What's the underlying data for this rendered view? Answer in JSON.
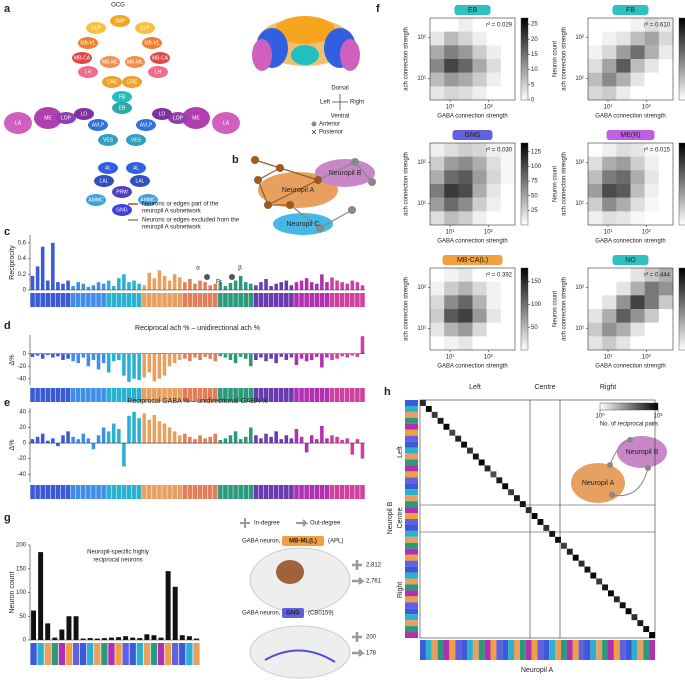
{
  "panel_labels": [
    "a",
    "b",
    "c",
    "d",
    "e",
    "f",
    "g",
    "h"
  ],
  "panel_a": {
    "top_label": "OCG",
    "regions": [
      {
        "name": "SMP",
        "color": "#f7a51e"
      },
      {
        "name": "SLP",
        "color": "#f6c040"
      },
      {
        "name": "SLP",
        "color": "#f6c040"
      },
      {
        "name": "MB-VL",
        "color": "#f08030"
      },
      {
        "name": "MB-VL",
        "color": "#f08030"
      },
      {
        "name": "MB-CA",
        "color": "#e04848"
      },
      {
        "name": "MB-CA",
        "color": "#e04848"
      },
      {
        "name": "LH",
        "color": "#f06c8c"
      },
      {
        "name": "LH",
        "color": "#f06c8c"
      },
      {
        "name": "MB-ML",
        "color": "#f09050"
      },
      {
        "name": "MB-ML",
        "color": "#f09050"
      },
      {
        "name": "CRE",
        "color": "#f0a030"
      },
      {
        "name": "CRE",
        "color": "#f0a030"
      },
      {
        "name": "FB",
        "color": "#20c0c0"
      },
      {
        "name": "EB",
        "color": "#30a8a8"
      },
      {
        "name": "LA",
        "color": "#d060c0"
      },
      {
        "name": "ME",
        "color": "#b040b0"
      },
      {
        "name": "LOP",
        "color": "#9040b0"
      },
      {
        "name": "LO",
        "color": "#8030a0"
      },
      {
        "name": "LA",
        "color": "#d060c0"
      },
      {
        "name": "ME",
        "color": "#b040b0"
      },
      {
        "name": "LOP",
        "color": "#9040b0"
      },
      {
        "name": "LO",
        "color": "#8030a0"
      },
      {
        "name": "AVLP",
        "color": "#3070e0"
      },
      {
        "name": "AVLP",
        "color": "#3070e0"
      },
      {
        "name": "VES",
        "color": "#30a0c0"
      },
      {
        "name": "VES",
        "color": "#30a0c0"
      },
      {
        "name": "AL",
        "color": "#3060e0"
      },
      {
        "name": "AL",
        "color": "#3060e0"
      },
      {
        "name": "LAL",
        "color": "#3050c0"
      },
      {
        "name": "LAL",
        "color": "#3050c0"
      },
      {
        "name": "PRW",
        "color": "#5040c0"
      },
      {
        "name": "GNG",
        "color": "#4040e0"
      },
      {
        "name": "AMMC",
        "color": "#40a0e0"
      },
      {
        "name": "AMMC",
        "color": "#40a0e0"
      }
    ],
    "compass": [
      "Dorsal",
      "Ventral",
      "Left",
      "Right",
      "Anterior",
      "Posterior"
    ]
  },
  "panel_b": {
    "nodes": [
      "Neuropil A",
      "Neuropil B",
      "Neuropil C"
    ],
    "legend": [
      [
        "Neurons or edges part of the",
        "neuropil A subnetwork"
      ],
      [
        "Neurons or edges excluded from the",
        "neuropil A subnetwork"
      ]
    ]
  },
  "chart_data": [
    {
      "type": "bar",
      "y_label": "Reciprocity",
      "inset_labels": [
        "α",
        "Pr",
        "β"
      ],
      "colors": [
        "#3b5ad8",
        "#3f8ee8",
        "#2ab0d0",
        "#e8a060",
        "#e07f5a",
        "#2a9a7a",
        "#6a3ab0",
        "#b030b0",
        "#d040a0"
      ],
      "values": [
        0.18,
        0.3,
        0.55,
        0.12,
        0.6,
        0.1,
        0.08,
        0.12,
        0.05,
        0.1,
        0.08,
        0.04,
        0.06,
        0.1,
        0.08,
        0.12,
        0.05,
        0.15,
        0.2,
        0.1,
        0.12,
        0.08,
        0.06,
        0.22,
        0.15,
        0.25,
        0.18,
        0.12,
        0.2,
        0.16,
        0.1,
        0.14,
        0.08,
        0.12,
        0.1,
        0.06,
        0.08,
        0.1,
        0.05,
        0.09,
        0.12,
        0.18,
        0.1,
        0.08,
        0.06,
        0.1,
        0.14,
        0.05,
        0.08,
        0.1,
        0.12,
        0.06,
        0.1,
        0.12,
        0.15,
        0.1,
        0.08,
        0.2,
        0.1,
        0.16,
        0.12,
        0.1,
        0.08,
        0.12,
        0.1,
        0.06
      ],
      "ylim": [
        0,
        0.7
      ],
      "yticks": [
        0,
        0.2,
        0.4,
        0.6
      ]
    },
    {
      "type": "bar",
      "title": "Reciprocal ach % – unidirectional ach %",
      "y_label": "Δ%",
      "colors": [
        "#3b5ad8",
        "#3f8ee8",
        "#2ab0d0",
        "#e8a060",
        "#e07f5a",
        "#2a9a7a",
        "#6a3ab0",
        "#b030b0",
        "#d040a0"
      ],
      "values": [
        -5,
        -3,
        -8,
        -2,
        -6,
        -4,
        -10,
        -8,
        -12,
        -15,
        -6,
        -20,
        -10,
        -25,
        -15,
        -30,
        -12,
        -10,
        -35,
        -45,
        -40,
        -42,
        -38,
        -30,
        -44,
        -40,
        -35,
        -20,
        -15,
        -10,
        -8,
        -12,
        -6,
        -10,
        -5,
        -8,
        -12,
        -4,
        -6,
        -10,
        -15,
        -5,
        -8,
        -20,
        -10,
        -6,
        -12,
        -8,
        -15,
        -5,
        -10,
        -6,
        -18,
        -8,
        -12,
        -10,
        -5,
        -22,
        -6,
        -10,
        -8,
        -4,
        -6,
        -3,
        -5,
        28
      ],
      "ylim": [
        -50,
        30
      ],
      "yticks": [
        0,
        -20,
        -40
      ]
    },
    {
      "type": "bar",
      "title": "Reciprocal GABA % – unidirectional GABA %",
      "y_label": "Δ%",
      "colors": [
        "#3b5ad8",
        "#3f8ee8",
        "#2ab0d0",
        "#e8a060",
        "#e07f5a",
        "#2a9a7a",
        "#6a3ab0",
        "#b030b0",
        "#d040a0"
      ],
      "values": [
        5,
        8,
        12,
        3,
        6,
        -4,
        10,
        15,
        8,
        5,
        12,
        6,
        -8,
        10,
        20,
        15,
        25,
        18,
        -30,
        35,
        40,
        32,
        38,
        30,
        36,
        28,
        25,
        20,
        15,
        10,
        12,
        8,
        5,
        10,
        6,
        8,
        12,
        4,
        6,
        10,
        15,
        5,
        8,
        20,
        10,
        6,
        12,
        8,
        15,
        5,
        10,
        6,
        18,
        8,
        -12,
        10,
        5,
        22,
        6,
        10,
        8,
        4,
        6,
        -15,
        5,
        -20
      ],
      "ylim": [
        -50,
        45
      ],
      "yticks": [
        40,
        20,
        0,
        -20,
        -40
      ]
    },
    {
      "type": "bar",
      "y_label": "Neuron count",
      "color": "#111111",
      "values": [
        62,
        185,
        35,
        5,
        22,
        50,
        50,
        3,
        4,
        3,
        4,
        5,
        6,
        8,
        5,
        4,
        12,
        10,
        5,
        145,
        112,
        10,
        8,
        3
      ],
      "ylim": [
        0,
        200
      ],
      "yticks": [
        0,
        50,
        100,
        150,
        200
      ]
    }
  ],
  "panel_f": {
    "x_label": "GABA connection strength",
    "y_label": "ach connection strength",
    "colorbar_label": "Neuron count",
    "xlim": [
      3,
      500
    ],
    "ylim": [
      3,
      300
    ],
    "xticks": [
      {
        "value": 10,
        "label": "10¹"
      },
      {
        "value": 100,
        "label": "10²"
      }
    ],
    "yticks": [
      {
        "value": 10,
        "label": "10¹"
      },
      {
        "value": 100,
        "label": "10²"
      }
    ],
    "panels": [
      {
        "name": "EB",
        "color": "#30c0c0",
        "r2_label": "r² = 0.029",
        "colorbar_lim": [
          0,
          27
        ],
        "colorbar_ticks": [
          0,
          5,
          10,
          15,
          20,
          25
        ],
        "cells": [
          [
            0,
            0,
            2,
            0,
            0,
            0
          ],
          [
            3,
            8,
            5,
            2,
            0,
            0
          ],
          [
            10,
            15,
            12,
            6,
            2,
            0
          ],
          [
            14,
            22,
            18,
            10,
            4,
            0
          ],
          [
            8,
            12,
            10,
            6,
            2,
            0
          ],
          [
            3,
            5,
            4,
            2,
            0,
            0
          ]
        ]
      },
      {
        "name": "FB",
        "color": "#30c0c0",
        "r2_label": "r² = 0.610",
        "colorbar_lim": [
          0,
          35
        ],
        "colorbar_ticks": [
          0,
          10,
          20,
          30
        ],
        "cells": [
          [
            0,
            0,
            0,
            2,
            5,
            3
          ],
          [
            0,
            2,
            4,
            10,
            14,
            6
          ],
          [
            2,
            6,
            15,
            22,
            12,
            3
          ],
          [
            5,
            14,
            25,
            10,
            4,
            0
          ],
          [
            10,
            18,
            12,
            4,
            0,
            0
          ],
          [
            6,
            8,
            3,
            0,
            0,
            0
          ]
        ]
      },
      {
        "name": "GNG",
        "color": "#6060e0",
        "r2_label": "r² = 0.030",
        "colorbar_lim": [
          0,
          140
        ],
        "colorbar_ticks": [
          25,
          50,
          75,
          100,
          125
        ],
        "cells": [
          [
            10,
            20,
            30,
            25,
            10,
            5
          ],
          [
            30,
            60,
            70,
            50,
            20,
            5
          ],
          [
            50,
            90,
            100,
            60,
            25,
            5
          ],
          [
            80,
            120,
            110,
            50,
            15,
            0
          ],
          [
            60,
            90,
            70,
            30,
            10,
            0
          ],
          [
            20,
            40,
            30,
            10,
            0,
            0
          ]
        ]
      },
      {
        "name": "ME(R)",
        "color": "#c060e0",
        "r2_label": "r² = 0.015",
        "colorbar_lim": [
          0,
          1400
        ],
        "colorbar_ticks": [
          250,
          500,
          750,
          {
            "value": 1000,
            "label": "1,000"
          },
          {
            "value": 1250,
            "label": "1,250"
          }
        ],
        "cells": [
          [
            0,
            100,
            200,
            150,
            50,
            0
          ],
          [
            200,
            500,
            600,
            300,
            100,
            0
          ],
          [
            400,
            800,
            900,
            500,
            150,
            0
          ],
          [
            600,
            1100,
            1000,
            400,
            100,
            0
          ],
          [
            300,
            700,
            500,
            200,
            50,
            0
          ],
          [
            100,
            200,
            150,
            50,
            0,
            0
          ]
        ]
      },
      {
        "name": "MB-CA(L)",
        "color": "#f0a040",
        "r2_label": "r² = 0.392",
        "colorbar_lim": [
          0,
          180
        ],
        "colorbar_ticks": [
          50,
          100,
          150
        ],
        "cells": [
          [
            0,
            10,
            20,
            0,
            0,
            0
          ],
          [
            10,
            40,
            60,
            30,
            10,
            0
          ],
          [
            30,
            90,
            120,
            60,
            10,
            0
          ],
          [
            40,
            130,
            150,
            80,
            20,
            0
          ],
          [
            20,
            60,
            80,
            30,
            0,
            0
          ],
          [
            0,
            10,
            20,
            0,
            0,
            0
          ]
        ]
      },
      {
        "name": "NO",
        "color": "#30c0c0",
        "r2_label": "r² = 0.444",
        "colorbar_lim": [
          0,
          17
        ],
        "colorbar_ticks": [
          5,
          10,
          15
        ],
        "cells": [
          [
            0,
            0,
            0,
            2,
            4,
            6
          ],
          [
            0,
            0,
            2,
            6,
            10,
            8
          ],
          [
            0,
            2,
            8,
            14,
            10,
            4
          ],
          [
            2,
            6,
            12,
            8,
            4,
            0
          ],
          [
            4,
            8,
            6,
            2,
            0,
            0
          ],
          [
            2,
            4,
            2,
            0,
            0,
            0
          ]
        ]
      }
    ]
  },
  "panel_g": {
    "note": [
      "Neuropil-specific highly",
      "reciprocal neurons"
    ],
    "legend": [
      "In-degree",
      "Out-degree"
    ],
    "neurons": [
      {
        "prefix": "GABA neuron,",
        "badge": "MB-ML(L)",
        "badge_color": "#f0a040",
        "suffix": "(APL)",
        "in_degree": {
          "value": 2812,
          "label": "2,812"
        },
        "out_degree": {
          "value": 2761,
          "label": "2,761"
        }
      },
      {
        "prefix": "GABA neuron,",
        "badge": "GNG",
        "badge_color": "#6060e0",
        "suffix": "(CB0159)",
        "in_degree": 200,
        "out_degree": 178
      }
    ]
  },
  "panel_h": {
    "col_groups": [
      "Left",
      "Centre",
      "Right"
    ],
    "row_groups": [
      "Left",
      "Centre",
      "Right"
    ],
    "y_label": "Neuropil B",
    "x_label": "Neuropil A",
    "colorbar_label": "No. of reciprocal pairs",
    "colorbar_lim": [
      1,
      1000
    ],
    "colorbar_ticks": [
      {
        "value": 1,
        "label": "10⁰"
      },
      {
        "value": 1000,
        "label": "10³"
      }
    ],
    "nodes": [
      "Neuropil A",
      "Neuropil B"
    ],
    "diagonal": [
      300,
      800,
      200,
      500,
      900,
      150,
      400,
      700,
      250,
      600,
      1000,
      350,
      120,
      500,
      800,
      200,
      450,
      650,
      300,
      900,
      700,
      250,
      550,
      800,
      180,
      400,
      950,
      300,
      600,
      750,
      220,
      500,
      850,
      350,
      650,
      900,
      280,
      480,
      720,
      1000
    ]
  }
}
